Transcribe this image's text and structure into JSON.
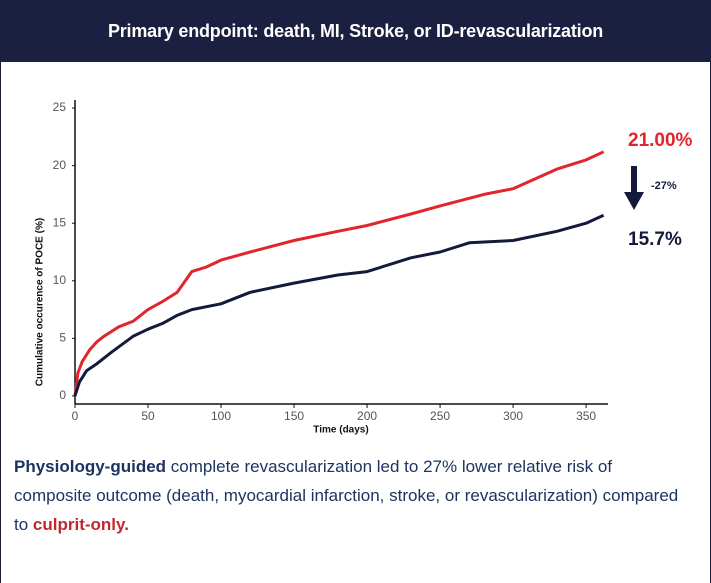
{
  "chart_data": {
    "type": "line",
    "title": "Primary endpoint: death, MI, Stroke, or ID-revascularization",
    "x_label": "Time (days)",
    "y_label": "Cumulative occurence of POCE (%)",
    "xlim": [
      0,
      365
    ],
    "xticks": [
      0,
      50,
      100,
      150,
      200,
      250,
      300,
      350
    ],
    "ylim": [
      -0.7,
      25.7
    ],
    "yticks": [
      0,
      5,
      10,
      15,
      20,
      25
    ],
    "series": [
      {
        "color": "#e0262c",
        "x": [
          0,
          2,
          5,
          10,
          15,
          20,
          30,
          40,
          50,
          60,
          70,
          80,
          90,
          100,
          120,
          150,
          180,
          200,
          230,
          250,
          280,
          300,
          330,
          350,
          362
        ],
        "values": [
          0,
          2,
          3,
          4,
          4.7,
          5.2,
          6,
          6.5,
          7.5,
          8.2,
          9,
          10.8,
          11.2,
          11.8,
          12.5,
          13.5,
          14.3,
          14.8,
          15.8,
          16.5,
          17.5,
          18,
          19.7,
          20.5,
          21.2
        ]
      },
      {
        "color": "#141a3c",
        "x": [
          0,
          3,
          8,
          15,
          25,
          40,
          50,
          60,
          70,
          80,
          100,
          120,
          150,
          180,
          200,
          230,
          250,
          270,
          300,
          330,
          350,
          362
        ],
        "values": [
          0,
          1.2,
          2.2,
          2.8,
          3.8,
          5.2,
          5.8,
          6.3,
          7,
          7.5,
          8,
          9,
          9.8,
          10.5,
          10.8,
          12,
          12.5,
          13.3,
          13.5,
          14.3,
          15,
          15.7
        ]
      }
    ],
    "annotations": [
      "21.00%",
      "-27%",
      "15.7%"
    ]
  },
  "caption": {
    "lead": "Physiology-guided",
    "body": " complete revascularization led to 27% lower relative risk of composite outcome (death, myocardial infarction, stroke, or revascularization) compared to ",
    "tail": "culprit-only."
  }
}
